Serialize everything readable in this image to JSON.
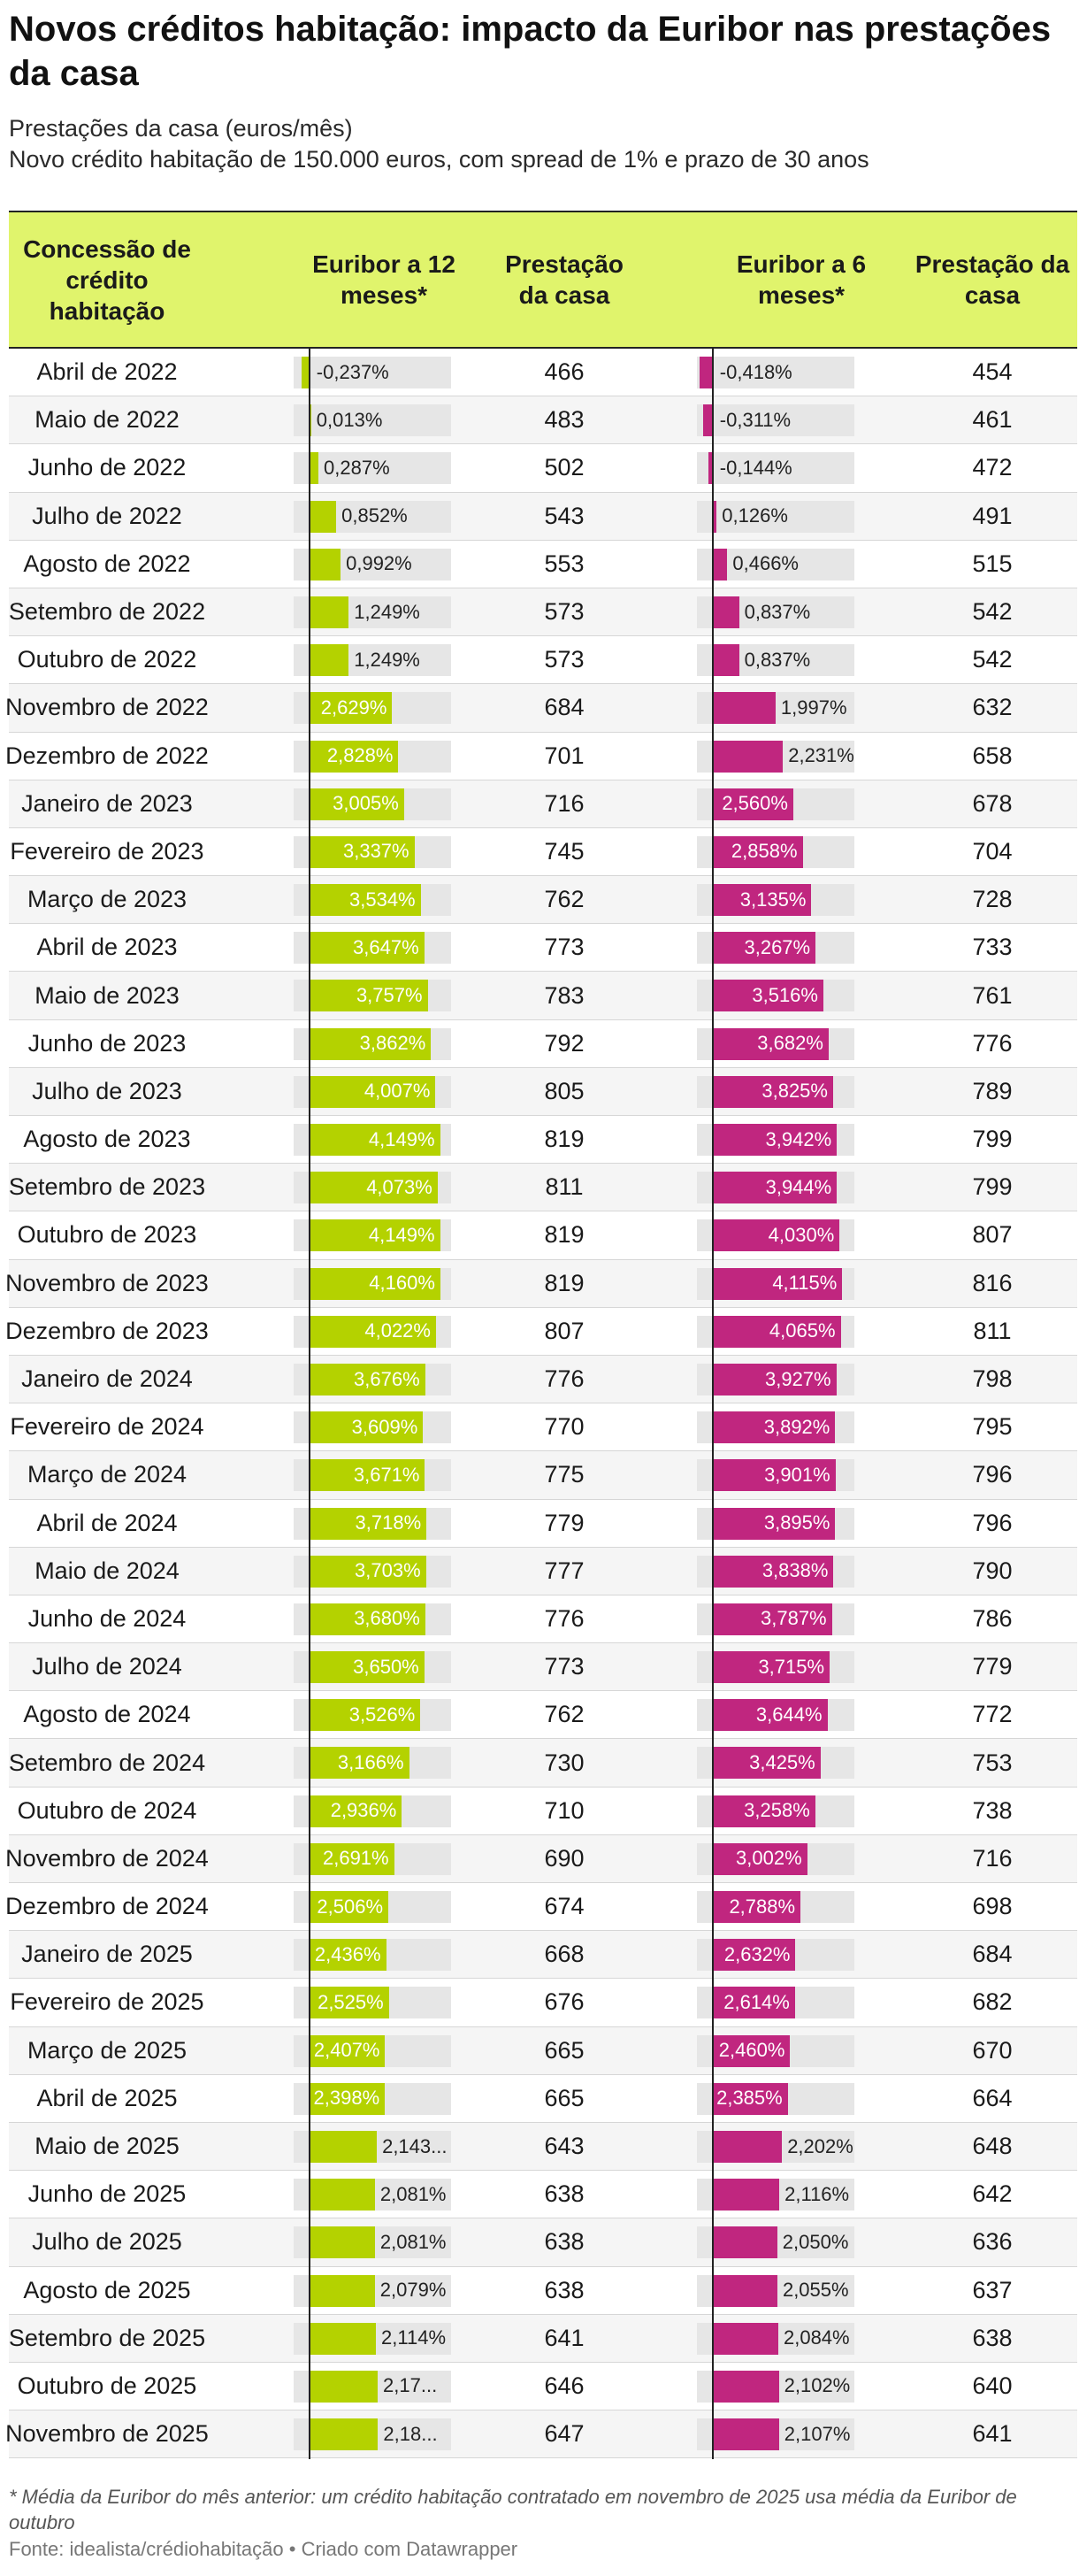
{
  "colors": {
    "header_bg": "#e0f46c",
    "euribor12": "#b4d200",
    "euribor6": "#c0267f"
  },
  "chart_data": {
    "type": "table",
    "title": "Novos créditos habitação: impacto da Euribor nas prestações da casa",
    "subtitle_1": "Prestações da casa (euros/mês)",
    "subtitle_2": "Novo crédito habitação de 150.000 euros, com spread de 1% e prazo de 30 anos",
    "columns": [
      "Concessão de crédito habitação",
      "Euribor a 12 meses*",
      "Prestação da casa",
      "Euribor a 6 meses*",
      "Prestação da casa"
    ],
    "bar_range": [
      -0.5,
      4.5
    ],
    "rows": [
      {
        "month": "Abril de 2022",
        "e12": -0.237,
        "e12_label": "-0,237%",
        "p12": 466,
        "e6": -0.418,
        "e6_label": "-0,418%",
        "p6": 454
      },
      {
        "month": "Maio de 2022",
        "e12": 0.013,
        "e12_label": "0,013%",
        "p12": 483,
        "e6": -0.311,
        "e6_label": "-0,311%",
        "p6": 461
      },
      {
        "month": "Junho de 2022",
        "e12": 0.287,
        "e12_label": "0,287%",
        "p12": 502,
        "e6": -0.144,
        "e6_label": "-0,144%",
        "p6": 472
      },
      {
        "month": "Julho de 2022",
        "e12": 0.852,
        "e12_label": "0,852%",
        "p12": 543,
        "e6": 0.126,
        "e6_label": "0,126%",
        "p6": 491
      },
      {
        "month": "Agosto de 2022",
        "e12": 0.992,
        "e12_label": "0,992%",
        "p12": 553,
        "e6": 0.466,
        "e6_label": "0,466%",
        "p6": 515
      },
      {
        "month": "Setembro de 2022",
        "e12": 1.249,
        "e12_label": "1,249%",
        "p12": 573,
        "e6": 0.837,
        "e6_label": "0,837%",
        "p6": 542
      },
      {
        "month": "Outubro de 2022",
        "e12": 1.249,
        "e12_label": "1,249%",
        "p12": 573,
        "e6": 0.837,
        "e6_label": "0,837%",
        "p6": 542
      },
      {
        "month": "Novembro de 2022",
        "e12": 2.629,
        "e12_label": "2,629%",
        "p12": 684,
        "e6": 1.997,
        "e6_label": "1,997%",
        "p6": 632
      },
      {
        "month": "Dezembro de 2022",
        "e12": 2.828,
        "e12_label": "2,828%",
        "p12": 701,
        "e6": 2.231,
        "e6_label": "2,231%",
        "p6": 658
      },
      {
        "month": "Janeiro de 2023",
        "e12": 3.005,
        "e12_label": "3,005%",
        "p12": 716,
        "e6": 2.56,
        "e6_label": "2,560%",
        "p6": 678
      },
      {
        "month": "Fevereiro de 2023",
        "e12": 3.337,
        "e12_label": "3,337%",
        "p12": 745,
        "e6": 2.858,
        "e6_label": "2,858%",
        "p6": 704
      },
      {
        "month": "Março de 2023",
        "e12": 3.534,
        "e12_label": "3,534%",
        "p12": 762,
        "e6": 3.135,
        "e6_label": "3,135%",
        "p6": 728
      },
      {
        "month": "Abril de 2023",
        "e12": 3.647,
        "e12_label": "3,647%",
        "p12": 773,
        "e6": 3.267,
        "e6_label": "3,267%",
        "p6": 733
      },
      {
        "month": "Maio de 2023",
        "e12": 3.757,
        "e12_label": "3,757%",
        "p12": 783,
        "e6": 3.516,
        "e6_label": "3,516%",
        "p6": 761
      },
      {
        "month": "Junho de 2023",
        "e12": 3.862,
        "e12_label": "3,862%",
        "p12": 792,
        "e6": 3.682,
        "e6_label": "3,682%",
        "p6": 776
      },
      {
        "month": "Julho de 2023",
        "e12": 4.007,
        "e12_label": "4,007%",
        "p12": 805,
        "e6": 3.825,
        "e6_label": "3,825%",
        "p6": 789
      },
      {
        "month": "Agosto de 2023",
        "e12": 4.149,
        "e12_label": "4,149%",
        "p12": 819,
        "e6": 3.942,
        "e6_label": "3,942%",
        "p6": 799
      },
      {
        "month": "Setembro de 2023",
        "e12": 4.073,
        "e12_label": "4,073%",
        "p12": 811,
        "e6": 3.944,
        "e6_label": "3,944%",
        "p6": 799
      },
      {
        "month": "Outubro de 2023",
        "e12": 4.149,
        "e12_label": "4,149%",
        "p12": 819,
        "e6": 4.03,
        "e6_label": "4,030%",
        "p6": 807
      },
      {
        "month": "Novembro de 2023",
        "e12": 4.16,
        "e12_label": "4,160%",
        "p12": 819,
        "e6": 4.115,
        "e6_label": "4,115%",
        "p6": 816
      },
      {
        "month": "Dezembro de 2023",
        "e12": 4.022,
        "e12_label": "4,022%",
        "p12": 807,
        "e6": 4.065,
        "e6_label": "4,065%",
        "p6": 811
      },
      {
        "month": "Janeiro de 2024",
        "e12": 3.676,
        "e12_label": "3,676%",
        "p12": 776,
        "e6": 3.927,
        "e6_label": "3,927%",
        "p6": 798
      },
      {
        "month": "Fevereiro de 2024",
        "e12": 3.609,
        "e12_label": "3,609%",
        "p12": 770,
        "e6": 3.892,
        "e6_label": "3,892%",
        "p6": 795
      },
      {
        "month": "Março de 2024",
        "e12": 3.671,
        "e12_label": "3,671%",
        "p12": 775,
        "e6": 3.901,
        "e6_label": "3,901%",
        "p6": 796
      },
      {
        "month": "Abril de 2024",
        "e12": 3.718,
        "e12_label": "3,718%",
        "p12": 779,
        "e6": 3.895,
        "e6_label": "3,895%",
        "p6": 796
      },
      {
        "month": "Maio de 2024",
        "e12": 3.703,
        "e12_label": "3,703%",
        "p12": 777,
        "e6": 3.838,
        "e6_label": "3,838%",
        "p6": 790
      },
      {
        "month": "Junho de 2024",
        "e12": 3.68,
        "e12_label": "3,680%",
        "p12": 776,
        "e6": 3.787,
        "e6_label": "3,787%",
        "p6": 786
      },
      {
        "month": "Julho de 2024",
        "e12": 3.65,
        "e12_label": "3,650%",
        "p12": 773,
        "e6": 3.715,
        "e6_label": "3,715%",
        "p6": 779
      },
      {
        "month": "Agosto de 2024",
        "e12": 3.526,
        "e12_label": "3,526%",
        "p12": 762,
        "e6": 3.644,
        "e6_label": "3,644%",
        "p6": 772
      },
      {
        "month": "Setembro de 2024",
        "e12": 3.166,
        "e12_label": "3,166%",
        "p12": 730,
        "e6": 3.425,
        "e6_label": "3,425%",
        "p6": 753
      },
      {
        "month": "Outubro de 2024",
        "e12": 2.936,
        "e12_label": "2,936%",
        "p12": 710,
        "e6": 3.258,
        "e6_label": "3,258%",
        "p6": 738
      },
      {
        "month": "Novembro de 2024",
        "e12": 2.691,
        "e12_label": "2,691%",
        "p12": 690,
        "e6": 3.002,
        "e6_label": "3,002%",
        "p6": 716
      },
      {
        "month": "Dezembro de 2024",
        "e12": 2.506,
        "e12_label": "2,506%",
        "p12": 674,
        "e6": 2.788,
        "e6_label": "2,788%",
        "p6": 698
      },
      {
        "month": "Janeiro de 2025",
        "e12": 2.436,
        "e12_label": "2,436%",
        "p12": 668,
        "e6": 2.632,
        "e6_label": "2,632%",
        "p6": 684
      },
      {
        "month": "Fevereiro de 2025",
        "e12": 2.525,
        "e12_label": "2,525%",
        "p12": 676,
        "e6": 2.614,
        "e6_label": "2,614%",
        "p6": 682
      },
      {
        "month": "Março de 2025",
        "e12": 2.407,
        "e12_label": "2,407%",
        "p12": 665,
        "e6": 2.46,
        "e6_label": "2,460%",
        "p6": 670
      },
      {
        "month": "Abril de 2025",
        "e12": 2.398,
        "e12_label": "2,398%",
        "p12": 665,
        "e6": 2.385,
        "e6_label": "2,385%",
        "p6": 664
      },
      {
        "month": "Maio de 2025",
        "e12": 2.143,
        "e12_label": "2,143...",
        "p12": 643,
        "e6": 2.202,
        "e6_label": "2,202%",
        "p6": 648
      },
      {
        "month": "Junho de 2025",
        "e12": 2.081,
        "e12_label": "2,081%",
        "p12": 638,
        "e6": 2.116,
        "e6_label": "2,116%",
        "p6": 642
      },
      {
        "month": "Julho de 2025",
        "e12": 2.081,
        "e12_label": "2,081%",
        "p12": 638,
        "e6": 2.05,
        "e6_label": "2,050%",
        "p6": 636
      },
      {
        "month": "Agosto de 2025",
        "e12": 2.079,
        "e12_label": "2,079%",
        "p12": 638,
        "e6": 2.055,
        "e6_label": "2,055%",
        "p6": 637
      },
      {
        "month": "Setembro de 2025",
        "e12": 2.114,
        "e12_label": "2,114%",
        "p12": 641,
        "e6": 2.084,
        "e6_label": "2,084%",
        "p6": 638
      },
      {
        "month": "Outubro de 2025",
        "e12": 2.17,
        "e12_label": "2,17...",
        "p12": 646,
        "e6": 2.102,
        "e6_label": "2,102%",
        "p6": 640
      },
      {
        "month": "Novembro de 2025",
        "e12": 2.18,
        "e12_label": "2,18...",
        "p12": 647,
        "e6": 2.107,
        "e6_label": "2,107%",
        "p6": 641
      }
    ],
    "footnote": "* Média da Euribor do mês anterior: um crédito habitação contratado em novembro de 2025 usa média da Euribor de outubro",
    "source": "Fonte: idealista/crédiohabitação • Criado com Datawrapper"
  }
}
